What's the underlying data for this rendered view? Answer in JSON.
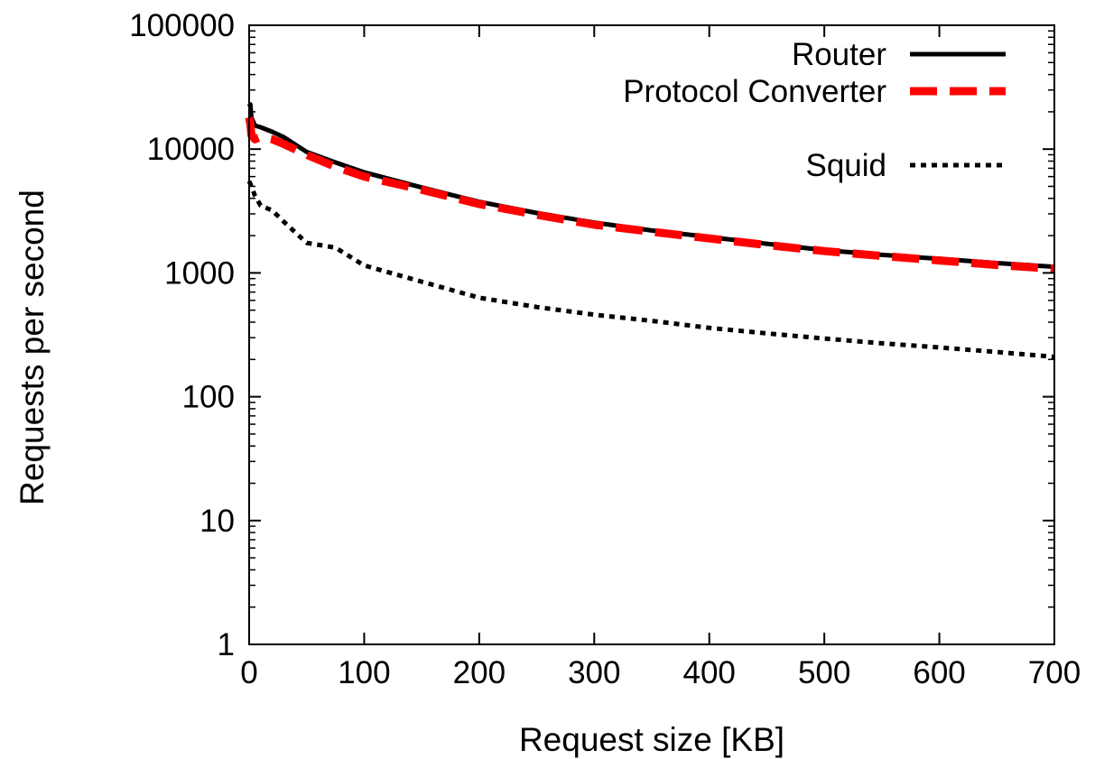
{
  "chart_data": {
    "type": "line",
    "title": "",
    "xlabel": "Request size [KB]",
    "ylabel": "Requests per second",
    "xlim": [
      0,
      700
    ],
    "ylim": [
      1,
      100000
    ],
    "yscale": "log",
    "grid": false,
    "legend_position": "top-right",
    "xticks": [
      0,
      100,
      200,
      300,
      400,
      500,
      600,
      700
    ],
    "xtick_labels": [
      "0",
      "100",
      "200",
      "300",
      "400",
      "500",
      "600",
      "700"
    ],
    "yticks": [
      1,
      10,
      100,
      1000,
      10000,
      100000
    ],
    "ytick_labels": [
      "1",
      "10",
      "100",
      "1000",
      "10000",
      "100000"
    ],
    "series": [
      {
        "name": "Router",
        "color": "#000000",
        "style": "solid",
        "x": [
          0,
          1,
          2,
          5,
          10,
          20,
          30,
          50,
          75,
          100,
          150,
          200,
          250,
          300,
          350,
          400,
          450,
          500,
          550,
          600,
          650,
          700
        ],
        "y": [
          22000,
          23000,
          18000,
          15500,
          15000,
          13800,
          12500,
          9500,
          7800,
          6500,
          4900,
          3750,
          3050,
          2550,
          2200,
          1950,
          1720,
          1530,
          1400,
          1300,
          1200,
          1120
        ]
      },
      {
        "name": "Protocol Converter",
        "color": "#ff0000",
        "style": "dashed",
        "x": [
          0,
          1,
          2,
          5,
          10,
          20,
          30,
          50,
          75,
          100,
          150,
          200,
          250,
          300,
          350,
          400,
          450,
          500,
          550,
          600,
          650,
          700
        ],
        "y": [
          18000,
          16000,
          13000,
          12000,
          12500,
          12000,
          11000,
          9000,
          7200,
          6000,
          4700,
          3600,
          2950,
          2450,
          2150,
          1900,
          1680,
          1500,
          1370,
          1260,
          1160,
          1080
        ]
      },
      {
        "name": "Squid",
        "color": "#000000",
        "style": "dotted",
        "x": [
          0,
          2,
          5,
          10,
          20,
          30,
          50,
          75,
          100,
          150,
          200,
          250,
          300,
          350,
          400,
          450,
          500,
          550,
          600,
          650,
          700
        ],
        "y": [
          5500,
          5000,
          4200,
          3500,
          3200,
          2600,
          1750,
          1600,
          1150,
          850,
          630,
          530,
          460,
          410,
          360,
          325,
          295,
          270,
          250,
          230,
          210
        ]
      }
    ]
  }
}
